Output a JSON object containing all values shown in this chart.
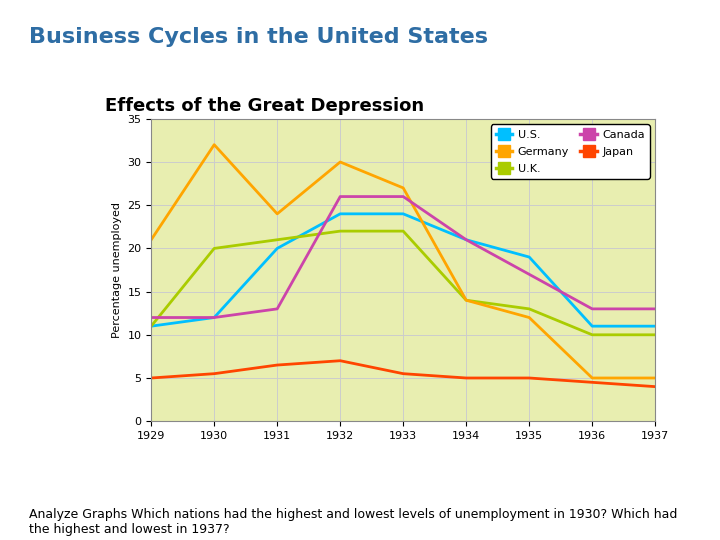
{
  "title": "Business Cycles in the United States",
  "chart_title": "Effects of the Great Depression",
  "ylabel": "Percentage unemployed",
  "years": [
    1929,
    1930,
    1931,
    1932,
    1933,
    1934,
    1935,
    1936,
    1937
  ],
  "series": {
    "U.S.": [
      11,
      12,
      20,
      24,
      24,
      21,
      19,
      11,
      11
    ],
    "U.K.": [
      11,
      20,
      21,
      22,
      22,
      14,
      13,
      10,
      10
    ],
    "Japan": [
      5,
      5.5,
      6.5,
      7,
      5.5,
      5,
      5,
      4.5,
      4
    ],
    "Germany": [
      21,
      32,
      24,
      30,
      27,
      14,
      12,
      5,
      5
    ],
    "Canada": [
      12,
      12,
      13,
      26,
      26,
      21,
      17,
      13,
      13
    ]
  },
  "colors": {
    "U.S.": "#00BFFF",
    "U.K.": "#AACC00",
    "Japan": "#FF4500",
    "Germany": "#FFA500",
    "Canada": "#CC44AA"
  },
  "ylim": [
    0,
    35
  ],
  "yticks": [
    0,
    5,
    10,
    15,
    20,
    25,
    30,
    35
  ],
  "background_outer": "#C8D860",
  "background_inner": "#E8EEB0",
  "grid_color": "#CCCCCC",
  "caption": "Analyze Graphs Which nations had the highest and lowest levels of unemployment in 1930? Which had\nthe highest and lowest in 1937?",
  "title_color": "#2E6DA4",
  "title_fontsize": 16,
  "chart_title_fontsize": 13,
  "caption_fontsize": 9
}
